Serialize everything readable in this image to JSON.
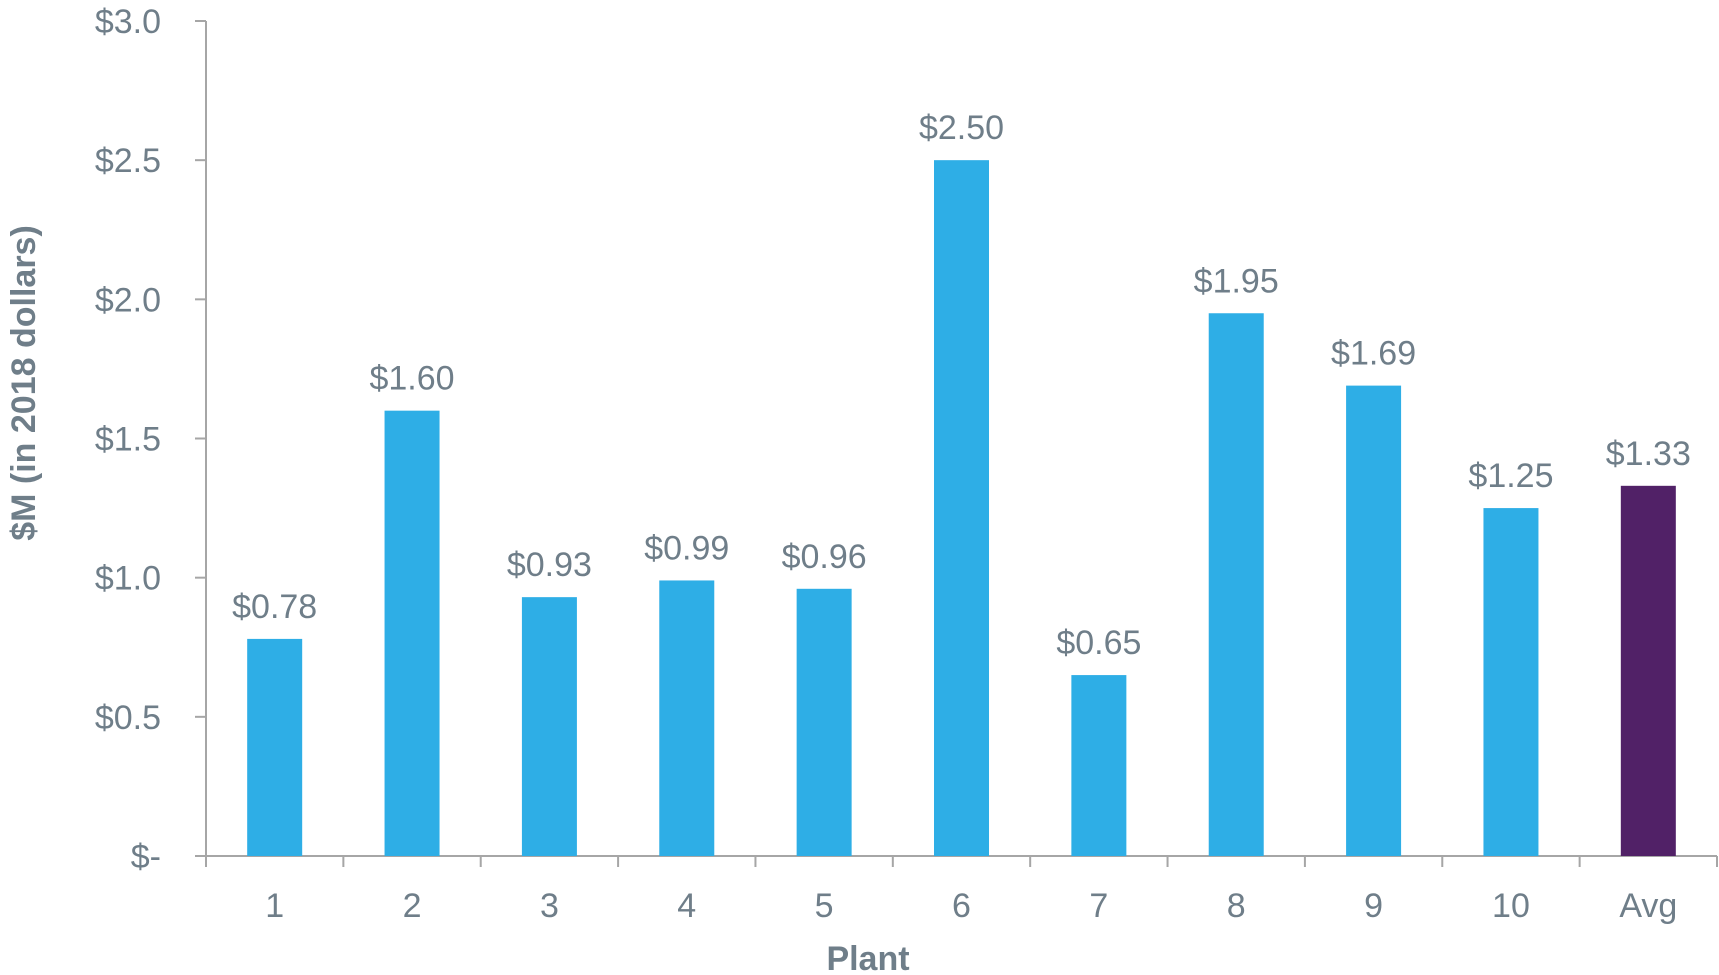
{
  "chart_data": {
    "type": "bar",
    "title": "",
    "xlabel": "Plant",
    "ylabel": "$M (in 2018 dollars)",
    "categories": [
      "1",
      "2",
      "3",
      "4",
      "5",
      "6",
      "7",
      "8",
      "9",
      "10",
      "Avg"
    ],
    "values": [
      0.78,
      1.6,
      0.93,
      0.99,
      0.96,
      2.5,
      0.65,
      1.95,
      1.69,
      1.25,
      1.33
    ],
    "data_labels": [
      "$0.78",
      "$1.60",
      "$0.93",
      "$0.99",
      "$0.96",
      "$2.50",
      "$0.65",
      "$1.95",
      "$1.69",
      "$1.25",
      "$1.33"
    ],
    "ylim": [
      0,
      3.0
    ],
    "yticks": [
      0,
      0.5,
      1.0,
      1.5,
      2.0,
      2.5,
      3.0
    ],
    "ytick_labels": [
      "$-",
      "$0.5",
      "$1.0",
      "$1.5",
      "$2.0",
      "$2.5",
      "$3.0"
    ],
    "grid": false,
    "legend": "none",
    "colors": {
      "bar": "#2eaee6",
      "highlight_bar": "#512167",
      "axis": "#a6a6a6",
      "text": "#6f7e89"
    },
    "highlight_category": "Avg"
  }
}
